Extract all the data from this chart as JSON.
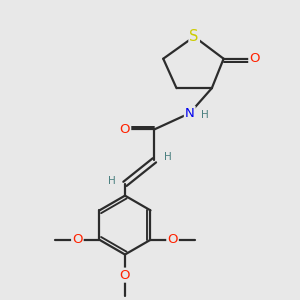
{
  "bg_color": "#e8e8e8",
  "bond_color": "#2c2c2c",
  "bond_width": 1.6,
  "atom_colors": {
    "S": "#cccc00",
    "O": "#ff2200",
    "N": "#0000ee",
    "C": "#2c2c2c",
    "H": "#4a8080"
  },
  "font_size_atom": 9.5,
  "font_size_h": 7.5,
  "font_size_ome": 7.0
}
